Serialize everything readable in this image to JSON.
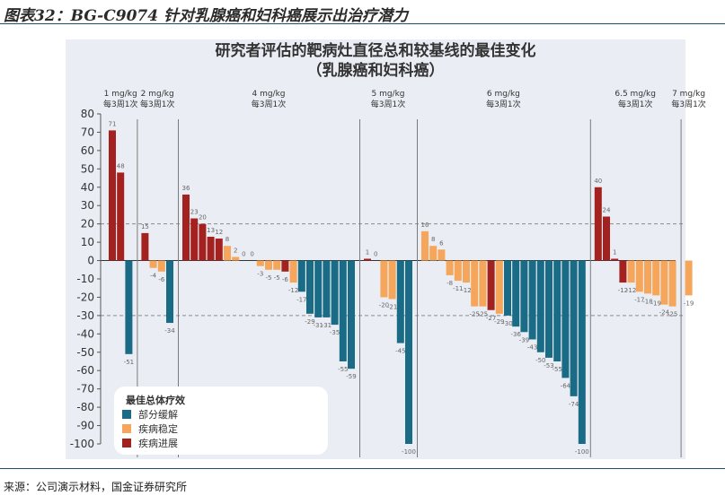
{
  "caption": "图表32：BG-C9074 针对乳腺癌和妇科癌展示出治疗潜力",
  "source": "来源：公司演示材料，国金证券研究所",
  "colors": {
    "pr": "#1a6b86",
    "sd": "#f5a65b",
    "pd": "#a3211f",
    "panel": "#eaeef4",
    "rule": "#1d4e6e",
    "text": "#333333"
  },
  "chart_data": {
    "type": "bar",
    "title": "研究者评估的靶病灶直径总和较基线的最佳变化",
    "subtitle": "（乳腺癌和妇科癌）",
    "xlabel": "",
    "ylabel": "",
    "ylim": [
      -100,
      80
    ],
    "y_ticks": [
      80,
      70,
      60,
      50,
      40,
      30,
      20,
      10,
      0,
      -10,
      -20,
      -30,
      -40,
      -50,
      -60,
      -70,
      -80,
      -90,
      -100
    ],
    "reference_lines": [
      20,
      -30
    ],
    "legend": {
      "title": "最佳总体疗效",
      "placement": "bottom-left",
      "items": [
        {
          "key": "pr",
          "label": "部分缓解"
        },
        {
          "key": "sd",
          "label": "疾病稳定"
        },
        {
          "key": "pd",
          "label": "疾病进展"
        }
      ]
    },
    "dose_groups": [
      {
        "dose": "1 mg/kg",
        "schedule": "每3周1次",
        "bars": [
          {
            "value": 71,
            "response": "pd"
          },
          {
            "value": 48,
            "response": "pd"
          },
          {
            "value": -51,
            "response": "pr"
          }
        ]
      },
      {
        "dose": "2 mg/kg",
        "schedule": "每3周1次",
        "bars": [
          {
            "value": 15,
            "response": "pd"
          },
          {
            "value": -4,
            "response": "sd"
          },
          {
            "value": -6,
            "response": "sd"
          },
          {
            "value": -34,
            "response": "pr"
          }
        ]
      },
      {
        "dose": "4 mg/kg",
        "schedule": "每3周1次",
        "bars": [
          {
            "value": 36,
            "response": "pd"
          },
          {
            "value": 23,
            "response": "pd"
          },
          {
            "value": 20,
            "response": "pd"
          },
          {
            "value": 13,
            "response": "pd"
          },
          {
            "value": 12,
            "response": "pd"
          },
          {
            "value": 8,
            "response": "sd"
          },
          {
            "value": 2,
            "response": "sd"
          },
          {
            "value": 0,
            "response": "sd"
          },
          {
            "value": 0,
            "response": "sd"
          },
          {
            "value": -3,
            "response": "sd"
          },
          {
            "value": -5,
            "response": "sd"
          },
          {
            "value": -5,
            "response": "sd"
          },
          {
            "value": -6,
            "response": "pd"
          },
          {
            "value": -12,
            "response": "sd"
          },
          {
            "value": -17,
            "response": "pr"
          },
          {
            "value": -29,
            "response": "pr"
          },
          {
            "value": -31,
            "response": "pr"
          },
          {
            "value": -31,
            "response": "pr"
          },
          {
            "value": -35,
            "response": "pr"
          },
          {
            "value": -55,
            "response": "pr"
          },
          {
            "value": -59,
            "response": "pr"
          }
        ]
      },
      {
        "dose": "5 mg/kg",
        "schedule": "每3周1次",
        "bars": [
          {
            "value": 1,
            "response": "pd"
          },
          {
            "value": 0,
            "response": "sd"
          },
          {
            "value": -20,
            "response": "sd"
          },
          {
            "value": -21,
            "response": "sd"
          },
          {
            "value": -45,
            "response": "pr"
          },
          {
            "value": -100,
            "response": "pr"
          }
        ]
      },
      {
        "dose": "6 mg/kg",
        "schedule": "每3周1次",
        "bars": [
          {
            "value": 16,
            "response": "sd"
          },
          {
            "value": 8,
            "response": "sd"
          },
          {
            "value": 6,
            "response": "sd"
          },
          {
            "value": -8,
            "response": "sd"
          },
          {
            "value": -11,
            "response": "sd"
          },
          {
            "value": -12,
            "response": "sd"
          },
          {
            "value": -25,
            "response": "sd"
          },
          {
            "value": -25,
            "response": "sd"
          },
          {
            "value": -27,
            "response": "pd"
          },
          {
            "value": -29,
            "response": "sd"
          },
          {
            "value": -30,
            "response": "pr"
          },
          {
            "value": -36,
            "response": "pr"
          },
          {
            "value": -39,
            "response": "pr"
          },
          {
            "value": -43,
            "response": "pr"
          },
          {
            "value": -50,
            "response": "pr"
          },
          {
            "value": -53,
            "response": "pr"
          },
          {
            "value": -55,
            "response": "pr"
          },
          {
            "value": -64,
            "response": "pr"
          },
          {
            "value": -74,
            "response": "pr"
          },
          {
            "value": -100,
            "response": "pr"
          }
        ]
      },
      {
        "dose": "6.5 mg/kg",
        "schedule": "每3周1次",
        "bars": [
          {
            "value": 40,
            "response": "pd"
          },
          {
            "value": 24,
            "response": "pd"
          },
          {
            "value": 1,
            "response": "pd"
          },
          {
            "value": -12,
            "response": "pd"
          },
          {
            "value": -12,
            "response": "sd"
          },
          {
            "value": -17,
            "response": "sd"
          },
          {
            "value": -18,
            "response": "sd"
          },
          {
            "value": -19,
            "response": "sd"
          },
          {
            "value": -24,
            "response": "sd"
          },
          {
            "value": -25,
            "response": "sd"
          }
        ]
      },
      {
        "dose": "7 mg/kg",
        "schedule": "每3周1次",
        "bars": [
          {
            "value": -19,
            "response": "sd"
          }
        ]
      }
    ]
  }
}
